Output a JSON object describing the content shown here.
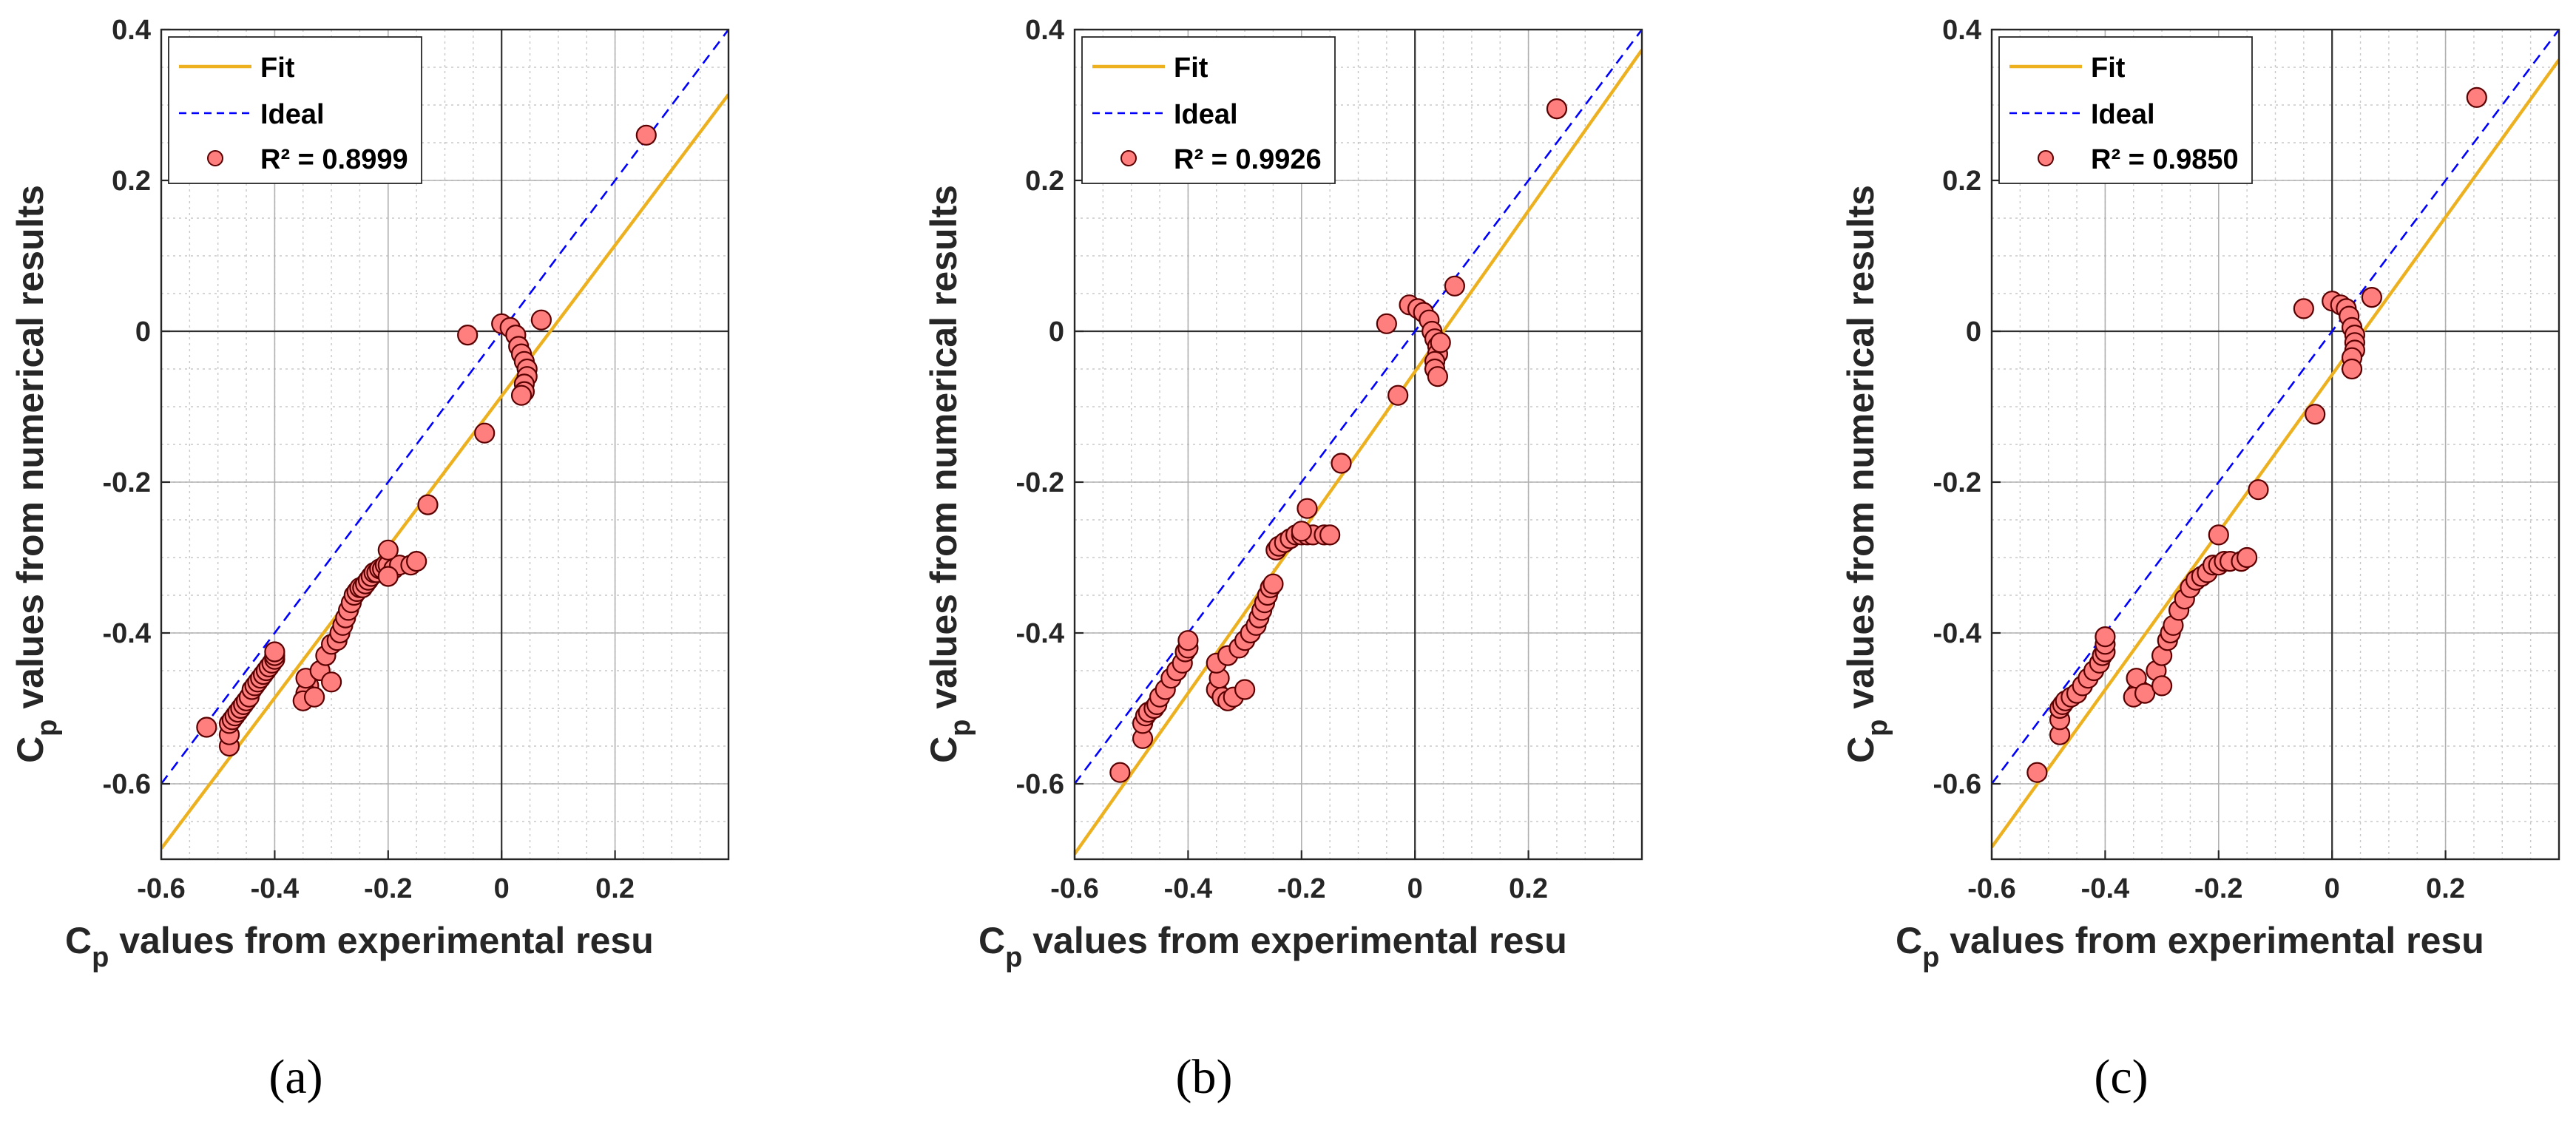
{
  "figure": {
    "panel_labels": [
      "(a)",
      "(b)",
      "(c)"
    ]
  },
  "chart_data": [
    {
      "type": "scatter",
      "panel": "(a)",
      "xlabel_main": "C",
      "xlabel_sub": "p",
      "xlabel_rest": " values from experimental resu",
      "ylabel_main": "C",
      "ylabel_sub": "p",
      "ylabel_rest": " values from numerical results",
      "xlim": [
        -0.6,
        0.4
      ],
      "ylim": [
        -0.7,
        0.4
      ],
      "xticks": [
        -0.6,
        -0.4,
        -0.2,
        0,
        0.2
      ],
      "xtick_labels": [
        "-0.6",
        "-0.4",
        "-0.2",
        "0",
        "0.2"
      ],
      "yticks": [
        -0.6,
        -0.4,
        -0.2,
        0,
        0.2,
        0.4
      ],
      "ytick_labels": [
        "-0.6",
        "-0.4",
        "-0.2",
        "0",
        "0.2",
        "0.4"
      ],
      "grid": true,
      "legend": {
        "position": "top-left",
        "entries": [
          "Fit",
          "Ideal",
          "R² = 0.8999"
        ]
      },
      "fit_line": {
        "x": [
          -0.6,
          0.4
        ],
        "y": [
          -0.686,
          0.314
        ],
        "color": "#EDB120"
      },
      "ideal_line": {
        "x": [
          -0.6,
          0.4
        ],
        "y": [
          -0.6,
          0.4
        ],
        "color": "#0000FF"
      },
      "colors": {
        "marker_fill": "#FF7F7F",
        "marker_edge": "#5A0000"
      },
      "points": {
        "x": [
          0.255,
          -0.52,
          -0.48,
          -0.48,
          -0.48,
          -0.475,
          -0.47,
          -0.465,
          -0.46,
          -0.455,
          -0.45,
          -0.445,
          -0.44,
          -0.435,
          -0.43,
          -0.425,
          -0.42,
          -0.415,
          -0.41,
          -0.405,
          -0.4,
          -0.4,
          -0.4,
          -0.34,
          -0.345,
          -0.35,
          -0.345,
          -0.33,
          -0.32,
          -0.31,
          -0.3,
          -0.29,
          -0.285,
          -0.28,
          -0.275,
          -0.27,
          -0.265,
          -0.26,
          -0.255,
          -0.25,
          -0.245,
          -0.24,
          -0.235,
          -0.23,
          -0.225,
          -0.22,
          -0.215,
          -0.21,
          -0.205,
          -0.2,
          -0.19,
          -0.18,
          -0.16,
          -0.15,
          -0.3,
          -0.13,
          -0.2,
          -0.2,
          -0.06,
          -0.03,
          0.0,
          0.015,
          0.025,
          0.03,
          0.035,
          0.04,
          0.045,
          0.045,
          0.04,
          0.04,
          0.035,
          0.07
        ],
        "y": [
          0.26,
          -0.525,
          -0.55,
          -0.535,
          -0.52,
          -0.515,
          -0.51,
          -0.505,
          -0.5,
          -0.495,
          -0.49,
          -0.485,
          -0.475,
          -0.47,
          -0.465,
          -0.46,
          -0.455,
          -0.45,
          -0.445,
          -0.44,
          -0.435,
          -0.43,
          -0.425,
          -0.47,
          -0.48,
          -0.49,
          -0.46,
          -0.485,
          -0.45,
          -0.43,
          -0.415,
          -0.41,
          -0.4,
          -0.39,
          -0.38,
          -0.37,
          -0.36,
          -0.35,
          -0.345,
          -0.34,
          -0.34,
          -0.335,
          -0.33,
          -0.325,
          -0.32,
          -0.32,
          -0.315,
          -0.315,
          -0.31,
          -0.31,
          -0.315,
          -0.31,
          -0.31,
          -0.305,
          -0.465,
          -0.23,
          -0.29,
          -0.325,
          -0.005,
          -0.135,
          0.01,
          0.005,
          -0.005,
          -0.02,
          -0.03,
          -0.04,
          -0.05,
          -0.06,
          -0.07,
          -0.08,
          -0.085,
          0.015
        ]
      }
    },
    {
      "type": "scatter",
      "panel": "(b)",
      "xlabel_main": "C",
      "xlabel_sub": "p",
      "xlabel_rest": " values from experimental resu",
      "ylabel_main": "C",
      "ylabel_sub": "p",
      "ylabel_rest": " values from numerical results",
      "xlim": [
        -0.6,
        0.4
      ],
      "ylim": [
        -0.7,
        0.4
      ],
      "xticks": [
        -0.6,
        -0.4,
        -0.2,
        0,
        0.2
      ],
      "xtick_labels": [
        "-0.6",
        "-0.4",
        "-0.2",
        "0",
        "0.2"
      ],
      "yticks": [
        -0.6,
        -0.4,
        -0.2,
        0,
        0.2,
        0.4
      ],
      "ytick_labels": [
        "-0.6",
        "-0.4",
        "-0.2",
        "0",
        "0.2",
        "0.4"
      ],
      "grid": true,
      "legend": {
        "position": "top-left",
        "entries": [
          "Fit",
          "Ideal",
          "R² = 0.9926"
        ]
      },
      "fit_line": {
        "x": [
          -0.6,
          0.4
        ],
        "y": [
          -0.693,
          0.373
        ],
        "color": "#EDB120"
      },
      "ideal_line": {
        "x": [
          -0.6,
          0.4
        ],
        "y": [
          -0.6,
          0.4
        ],
        "color": "#0000FF"
      },
      "colors": {
        "marker_fill": "#FF7F7F",
        "marker_edge": "#5A0000"
      },
      "points": {
        "x": [
          0.25,
          -0.52,
          -0.48,
          -0.48,
          -0.475,
          -0.47,
          -0.46,
          -0.455,
          -0.45,
          -0.44,
          -0.43,
          -0.42,
          -0.41,
          -0.405,
          -0.4,
          -0.4,
          -0.35,
          -0.34,
          -0.33,
          -0.32,
          -0.345,
          -0.35,
          -0.33,
          -0.31,
          -0.3,
          -0.29,
          -0.28,
          -0.275,
          -0.27,
          -0.265,
          -0.26,
          -0.255,
          -0.25,
          -0.245,
          -0.24,
          -0.23,
          -0.22,
          -0.21,
          -0.2,
          -0.19,
          -0.18,
          -0.16,
          -0.15,
          -0.3,
          -0.13,
          -0.19,
          -0.2,
          -0.05,
          -0.03,
          -0.01,
          0.005,
          0.015,
          0.025,
          0.03,
          0.035,
          0.04,
          0.04,
          0.035,
          0.035,
          0.04,
          0.045,
          0.07
        ],
        "y": [
          0.295,
          -0.585,
          -0.54,
          -0.52,
          -0.51,
          -0.505,
          -0.5,
          -0.495,
          -0.485,
          -0.475,
          -0.46,
          -0.45,
          -0.44,
          -0.425,
          -0.42,
          -0.41,
          -0.475,
          -0.485,
          -0.49,
          -0.485,
          -0.46,
          -0.44,
          -0.43,
          -0.42,
          -0.41,
          -0.4,
          -0.39,
          -0.38,
          -0.37,
          -0.36,
          -0.35,
          -0.34,
          -0.335,
          -0.29,
          -0.285,
          -0.28,
          -0.275,
          -0.27,
          -0.27,
          -0.27,
          -0.27,
          -0.27,
          -0.27,
          -0.475,
          -0.175,
          -0.235,
          -0.265,
          0.01,
          -0.085,
          0.035,
          0.03,
          0.025,
          0.015,
          0.0,
          -0.01,
          -0.02,
          -0.03,
          -0.04,
          -0.05,
          -0.06,
          -0.015,
          0.06
        ]
      }
    },
    {
      "type": "scatter",
      "panel": "(c)",
      "xlabel_main": "C",
      "xlabel_sub": "p",
      "xlabel_rest": " values from experimental resu",
      "ylabel_main": "C",
      "ylabel_sub": "p",
      "ylabel_rest": " values from numerical results",
      "xlim": [
        -0.6,
        0.4
      ],
      "ylim": [
        -0.7,
        0.4
      ],
      "xticks": [
        -0.6,
        -0.4,
        -0.2,
        0,
        0.2
      ],
      "xtick_labels": [
        "-0.6",
        "-0.4",
        "-0.2",
        "0",
        "0.2"
      ],
      "yticks": [
        -0.6,
        -0.4,
        -0.2,
        0,
        0.2,
        0.4
      ],
      "ytick_labels": [
        "-0.6",
        "-0.4",
        "-0.2",
        "0",
        "0.2",
        "0.4"
      ],
      "grid": true,
      "legend": {
        "position": "top-left",
        "entries": [
          "Fit",
          "Ideal",
          "R² = 0.9850"
        ]
      },
      "fit_line": {
        "x": [
          -0.6,
          0.4
        ],
        "y": [
          -0.684,
          0.36
        ],
        "color": "#EDB120"
      },
      "ideal_line": {
        "x": [
          -0.6,
          0.4
        ],
        "y": [
          -0.6,
          0.4
        ],
        "color": "#0000FF"
      },
      "colors": {
        "marker_fill": "#FF7F7F",
        "marker_edge": "#5A0000"
      },
      "points": {
        "x": [
          0.255,
          -0.52,
          -0.48,
          -0.48,
          -0.48,
          -0.475,
          -0.47,
          -0.46,
          -0.45,
          -0.44,
          -0.43,
          -0.42,
          -0.41,
          -0.405,
          -0.4,
          -0.4,
          -0.4,
          -0.34,
          -0.345,
          -0.35,
          -0.345,
          -0.33,
          -0.31,
          -0.3,
          -0.29,
          -0.285,
          -0.28,
          -0.27,
          -0.26,
          -0.25,
          -0.24,
          -0.23,
          -0.22,
          -0.21,
          -0.2,
          -0.19,
          -0.18,
          -0.16,
          -0.15,
          -0.3,
          -0.13,
          -0.2,
          -0.05,
          -0.03,
          0.0,
          0.015,
          0.025,
          0.03,
          0.035,
          0.04,
          0.04,
          0.04,
          0.035,
          0.035,
          0.07
        ],
        "y": [
          0.31,
          -0.585,
          -0.535,
          -0.515,
          -0.5,
          -0.495,
          -0.49,
          -0.485,
          -0.48,
          -0.47,
          -0.46,
          -0.45,
          -0.44,
          -0.43,
          -0.425,
          -0.415,
          -0.405,
          -0.475,
          -0.48,
          -0.485,
          -0.46,
          -0.48,
          -0.45,
          -0.43,
          -0.41,
          -0.4,
          -0.39,
          -0.37,
          -0.355,
          -0.34,
          -0.33,
          -0.325,
          -0.32,
          -0.31,
          -0.31,
          -0.305,
          -0.305,
          -0.305,
          -0.3,
          -0.47,
          -0.21,
          -0.27,
          0.03,
          -0.11,
          0.04,
          0.035,
          0.03,
          0.02,
          0.005,
          -0.005,
          -0.015,
          -0.025,
          -0.035,
          -0.05,
          0.045
        ]
      }
    }
  ]
}
